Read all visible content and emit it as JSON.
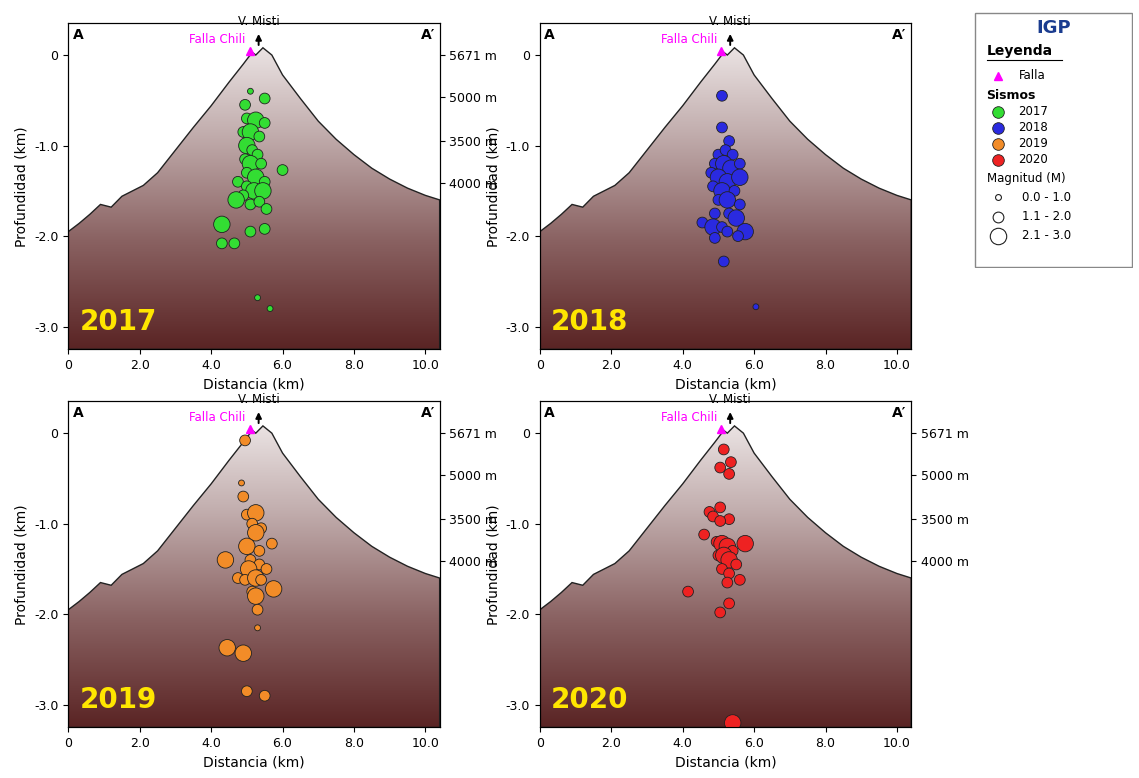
{
  "chart_data": [
    {
      "type": "scatter",
      "title": "2017",
      "xlabel": "Distancia (km)",
      "ylabel": "Profundidad (km)",
      "corner_labels": [
        "A",
        "A′"
      ],
      "xlim": [
        0,
        10.4
      ],
      "xticks": [
        0,
        {
          "value": 2,
          "label": "2.0"
        },
        {
          "value": 4,
          "label": "4.0"
        },
        {
          "value": 6,
          "label": "6.0"
        },
        {
          "value": 8,
          "label": "8.0"
        },
        {
          "value": 10,
          "label": "10.0"
        }
      ],
      "ylim": [
        -3.25,
        0.35
      ],
      "yticks": [
        {
          "value": -3,
          "label": "-3.0"
        },
        {
          "value": -2,
          "label": "-2.0"
        },
        {
          "value": -1,
          "label": "-1.0"
        },
        0
      ],
      "y2lim": [
        -3.25,
        0.35
      ],
      "y2ticks": [
        {
          "value": 0,
          "label": "5671 m"
        },
        {
          "value": -0.46,
          "label": "5000 m"
        },
        {
          "value": -0.95,
          "label": "3500 m"
        },
        {
          "value": -1.41,
          "label": "4000 m"
        }
      ],
      "series": [
        {
          "name": "2017",
          "color": "#33dd33",
          "x": [
            5.1,
            5.5,
            4.95,
            5.0,
            5.25,
            5.5,
            4.9,
            5.1,
            5.35,
            5.0,
            5.15,
            5.3,
            4.95,
            5.1,
            5.4,
            5.0,
            5.25,
            4.75,
            5.5,
            5.0,
            5.2,
            4.9,
            5.45,
            4.7,
            5.1,
            5.35,
            6.0,
            5.55,
            4.3,
            5.1,
            5.5,
            4.3,
            4.65,
            5.3,
            5.65
          ],
          "y": [
            -0.4,
            -0.48,
            -0.55,
            -0.7,
            -0.72,
            -0.75,
            -0.85,
            -0.85,
            -0.9,
            -1.0,
            -1.05,
            -1.1,
            -1.15,
            -1.2,
            -1.2,
            -1.3,
            -1.35,
            -1.4,
            -1.4,
            -1.45,
            -1.5,
            -1.55,
            -1.5,
            -1.6,
            -1.65,
            -1.62,
            -1.27,
            -1.7,
            -1.87,
            -1.95,
            -1.92,
            -2.08,
            -2.08,
            -2.68,
            -2.8
          ],
          "magnitude": [
            0.8,
            1.5,
            1.5,
            1.5,
            2.2,
            1.2,
            1.5,
            2.2,
            1.5,
            2.2,
            1.5,
            1.5,
            1.5,
            2.2,
            1.5,
            1.5,
            2.2,
            1.5,
            1.5,
            1.5,
            2.2,
            1.5,
            2.3,
            2.4,
            1.5,
            1.5,
            1.5,
            1.2,
            2.2,
            1.5,
            1.2,
            1.5,
            1.5,
            0.8,
            0.8
          ]
        }
      ]
    },
    {
      "type": "scatter",
      "title": "2018",
      "xlabel": "Distancia (km)",
      "ylabel": "Profundidad (km)",
      "corner_labels": [
        "A",
        "A′"
      ],
      "xlim": [
        0,
        10.4
      ],
      "xticks": [
        0,
        {
          "value": 2,
          "label": "2.0"
        },
        {
          "value": 4,
          "label": "4.0"
        },
        {
          "value": 6,
          "label": "6.0"
        },
        {
          "value": 8,
          "label": "8.0"
        },
        {
          "value": 10,
          "label": "10.0"
        }
      ],
      "ylim": [
        -3.25,
        0.35
      ],
      "yticks": [
        {
          "value": -3,
          "label": "-3.0"
        },
        {
          "value": -2,
          "label": "-2.0"
        },
        {
          "value": -1,
          "label": "-1.0"
        },
        0
      ],
      "y2lim": [
        -3.25,
        0.35
      ],
      "y2ticks": [],
      "series": [
        {
          "name": "2018",
          "color": "#2a2ae0",
          "x": [
            5.1,
            5.1,
            5.3,
            5.0,
            5.2,
            5.4,
            4.9,
            5.15,
            5.35,
            5.6,
            4.8,
            5.0,
            5.25,
            5.6,
            4.85,
            5.1,
            5.45,
            5.0,
            5.25,
            5.6,
            4.9,
            5.3,
            4.55,
            4.85,
            5.5,
            5.1,
            5.25,
            5.75,
            5.55,
            4.9,
            5.15,
            6.05
          ],
          "y": [
            -0.45,
            -0.8,
            -0.95,
            -1.1,
            -1.05,
            -1.1,
            -1.2,
            -1.2,
            -1.25,
            -1.2,
            -1.3,
            -1.35,
            -1.4,
            -1.35,
            -1.45,
            -1.5,
            -1.5,
            -1.6,
            -1.6,
            -1.65,
            -1.75,
            -1.75,
            -1.85,
            -1.9,
            -1.8,
            -1.9,
            -1.95,
            -1.95,
            -2.0,
            -2.02,
            -2.28,
            -2.78
          ],
          "magnitude": [
            1.5,
            1.5,
            1.5,
            1.5,
            1.5,
            1.5,
            1.5,
            2.2,
            2.2,
            1.5,
            1.5,
            2.2,
            2.2,
            2.3,
            1.5,
            2.2,
            1.5,
            1.5,
            2.2,
            1.2,
            1.5,
            1.5,
            1.5,
            2.2,
            2.2,
            1.5,
            1.5,
            2.3,
            1.5,
            1.5,
            1.5,
            0.8
          ]
        }
      ]
    },
    {
      "type": "scatter",
      "title": "2019",
      "xlabel": "Distancia (km)",
      "ylabel": "Profundidad (km)",
      "corner_labels": [
        "A",
        "A′"
      ],
      "xlim": [
        0,
        10.4
      ],
      "xticks": [
        0,
        {
          "value": 2,
          "label": "2.0"
        },
        {
          "value": 4,
          "label": "4.0"
        },
        {
          "value": 6,
          "label": "6.0"
        },
        {
          "value": 8,
          "label": "8.0"
        },
        {
          "value": 10,
          "label": "10.0"
        }
      ],
      "ylim": [
        -3.25,
        0.35
      ],
      "yticks": [
        {
          "value": -3,
          "label": "-3.0"
        },
        {
          "value": -2,
          "label": "-2.0"
        },
        {
          "value": -1,
          "label": "-1.0"
        },
        0
      ],
      "y2lim": [
        -3.25,
        0.35
      ],
      "y2ticks": [
        {
          "value": 0,
          "label": "5671 m"
        },
        {
          "value": -0.46,
          "label": "5000 m"
        },
        {
          "value": -0.95,
          "label": "3500 m"
        },
        {
          "value": -1.41,
          "label": "4000 m"
        }
      ],
      "series": [
        {
          "name": "2019",
          "color": "#f28c28",
          "x": [
            4.95,
            4.85,
            4.9,
            5.0,
            5.25,
            5.15,
            5.4,
            5.25,
            5.7,
            5.0,
            5.35,
            4.4,
            5.1,
            5.35,
            5.05,
            5.55,
            4.75,
            4.95,
            5.25,
            5.4,
            5.75,
            5.15,
            5.25,
            5.3,
            5.3,
            4.45,
            4.9,
            5.0,
            5.5
          ],
          "y": [
            -0.08,
            -0.55,
            -0.7,
            -0.9,
            -0.88,
            -1.0,
            -1.05,
            -1.1,
            -1.22,
            -1.25,
            -1.3,
            -1.4,
            -1.4,
            -1.45,
            -1.5,
            -1.5,
            -1.6,
            -1.62,
            -1.6,
            -1.62,
            -1.72,
            -1.75,
            -1.8,
            -1.95,
            -2.15,
            -2.37,
            -2.43,
            -2.85,
            -2.9
          ],
          "magnitude": [
            1.5,
            0.8,
            1.5,
            1.5,
            2.2,
            1.5,
            1.5,
            2.2,
            1.5,
            2.2,
            1.5,
            2.3,
            1.5,
            1.5,
            2.3,
            1.5,
            1.5,
            1.5,
            2.2,
            1.5,
            2.3,
            1.5,
            2.2,
            1.5,
            0.8,
            2.2,
            2.2,
            1.5,
            1.5
          ]
        }
      ]
    },
    {
      "type": "scatter",
      "title": "2020",
      "xlabel": "Distancia (km)",
      "ylabel": "Profundidad (km)",
      "corner_labels": [
        "A",
        "A′"
      ],
      "xlim": [
        0,
        10.4
      ],
      "xticks": [
        0,
        {
          "value": 2,
          "label": "2.0"
        },
        {
          "value": 4,
          "label": "4.0"
        },
        {
          "value": 6,
          "label": "6.0"
        },
        {
          "value": 8,
          "label": "8.0"
        },
        {
          "value": 10,
          "label": "10.0"
        }
      ],
      "ylim": [
        -3.25,
        0.35
      ],
      "yticks": [
        {
          "value": -3,
          "label": "-3.0"
        },
        {
          "value": -2,
          "label": "-2.0"
        },
        {
          "value": -1,
          "label": "-1.0"
        },
        0
      ],
      "y2lim": [
        -3.25,
        0.35
      ],
      "y2ticks": [
        {
          "value": 0,
          "label": "5671 m"
        },
        {
          "value": -0.46,
          "label": "5000 m"
        },
        {
          "value": -0.95,
          "label": "3500 m"
        },
        {
          "value": -1.41,
          "label": "4000 m"
        }
      ],
      "series": [
        {
          "name": "2020",
          "color": "#ee2222",
          "x": [
            5.15,
            5.35,
            5.05,
            5.3,
            4.75,
            4.85,
            5.05,
            5.3,
            5.05,
            4.6,
            4.95,
            5.1,
            5.25,
            5.4,
            5.75,
            5.0,
            5.15,
            5.3,
            5.5,
            5.1,
            5.3,
            5.6,
            5.25,
            4.15,
            5.3,
            5.05,
            5.4
          ],
          "y": [
            -0.18,
            -0.32,
            -0.38,
            -0.45,
            -0.87,
            -0.92,
            -0.82,
            -0.95,
            -0.97,
            -1.12,
            -1.2,
            -1.22,
            -1.25,
            -1.3,
            -1.22,
            -1.35,
            -1.35,
            -1.4,
            -1.45,
            -1.5,
            -1.55,
            -1.62,
            -1.65,
            -1.75,
            -1.88,
            -1.98,
            -3.2
          ],
          "magnitude": [
            1.5,
            1.5,
            1.5,
            1.2,
            1.5,
            1.5,
            1.5,
            1.5,
            1.5,
            1.5,
            1.5,
            2.2,
            2.2,
            1.5,
            2.3,
            1.5,
            2.2,
            2.2,
            1.5,
            1.5,
            1.5,
            1.5,
            1.5,
            1.5,
            1.5,
            1.5,
            2.2
          ]
        }
      ]
    }
  ],
  "topography": {
    "x": [
      0,
      0.3,
      0.6,
      0.9,
      1.2,
      1.5,
      1.8,
      2.1,
      2.5,
      3.0,
      3.5,
      4.0,
      4.5,
      4.9,
      5.15,
      5.25,
      5.45,
      5.7,
      6.0,
      6.5,
      7.0,
      7.5,
      8.0,
      8.5,
      9.0,
      9.5,
      10.0,
      10.4
    ],
    "y": [
      -1.95,
      -1.86,
      -1.76,
      -1.65,
      -1.68,
      -1.56,
      -1.5,
      -1.44,
      -1.3,
      -1.05,
      -0.8,
      -0.56,
      -0.3,
      -0.1,
      0.03,
      0.0,
      0.08,
      0.0,
      -0.22,
      -0.48,
      -0.73,
      -0.93,
      -1.1,
      -1.25,
      -1.37,
      -1.47,
      -1.55,
      -1.6
    ]
  },
  "summit": {
    "label": "V. Misti",
    "x": 5.33,
    "y": 0.08
  },
  "fault": {
    "label": "Falla Chili",
    "x": 5.08,
    "y": 0.05
  },
  "legend_box": {
    "logo": "IGP",
    "title": "Leyenda",
    "fault": "Falla",
    "events_title": "Sismos",
    "magnitude_title": "Magnitud (M)",
    "magnitude_classes": [
      {
        "label": "0.0 - 1.0",
        "min": 0.0,
        "max": 1.0
      },
      {
        "label": "1.1 - 2.0",
        "min": 1.1,
        "max": 2.0
      },
      {
        "label": "2.1 - 3.0",
        "min": 2.1,
        "max": 3.0
      }
    ]
  }
}
